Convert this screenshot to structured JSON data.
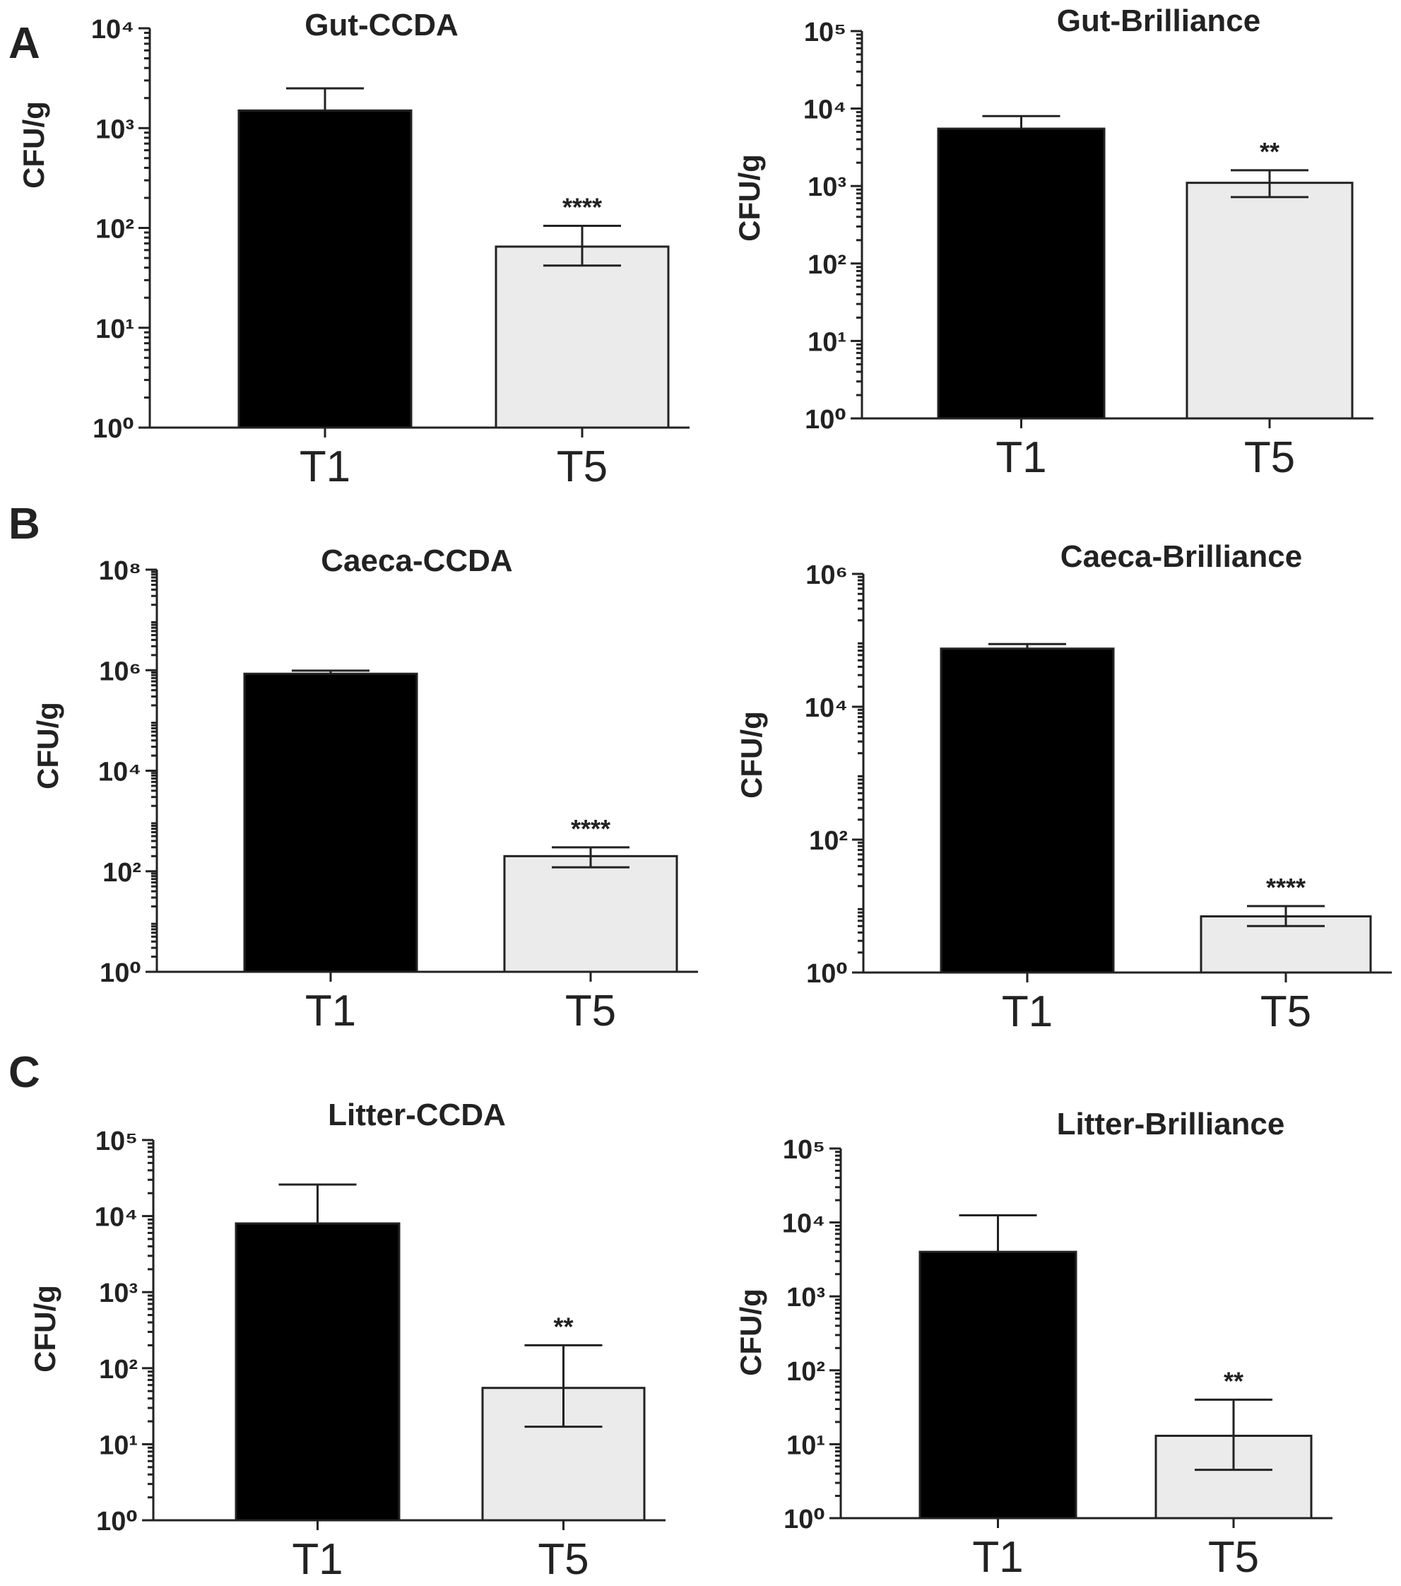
{
  "panel_labels": [
    "A",
    "B",
    "C"
  ],
  "colors": {
    "dark_bar": "#000000",
    "light_bar": "#ebebeb",
    "outline": "#222222",
    "background": "#ffffff"
  },
  "chart_data": [
    {
      "panel": "A",
      "type": "bar",
      "scale": "log10",
      "title": "Gut-CCDA",
      "ylabel": "CFU/g",
      "ylim": [
        1,
        10000
      ],
      "categories": [
        "T1",
        "T5"
      ],
      "values": [
        1500,
        65
      ],
      "error_upper": [
        2500,
        105
      ],
      "error_lower": [
        null,
        42
      ],
      "significance": [
        "",
        "****"
      ]
    },
    {
      "panel": "A",
      "type": "bar",
      "scale": "log10",
      "title": "Gut-Brilliance",
      "ylabel": "CFU/g",
      "ylim": [
        1,
        100000
      ],
      "categories": [
        "T1",
        "T5"
      ],
      "values": [
        5500,
        1100
      ],
      "error_upper": [
        8000,
        1600
      ],
      "error_lower": [
        null,
        720
      ],
      "significance": [
        "",
        "**"
      ]
    },
    {
      "panel": "B",
      "type": "bar",
      "scale": "log10",
      "title": "Caeca-CCDA",
      "ylabel": "CFU/g",
      "ylim": [
        1,
        100000000
      ],
      "categories": [
        "T1",
        "T5"
      ],
      "values": [
        850000,
        200
      ],
      "error_upper": [
        980000,
        300
      ],
      "error_lower": [
        null,
        120
      ],
      "significance": [
        "",
        "****"
      ]
    },
    {
      "panel": "B",
      "type": "bar",
      "scale": "log10",
      "title": "Caeca-Brilliance",
      "ylabel": "CFU/g",
      "ylim": [
        1,
        1000000
      ],
      "categories": [
        "T1",
        "T5"
      ],
      "values": [
        75000,
        7
      ],
      "error_upper": [
        88000,
        10
      ],
      "error_lower": [
        null,
        5
      ],
      "significance": [
        "",
        "****"
      ]
    },
    {
      "panel": "C",
      "type": "bar",
      "scale": "log10",
      "title": "Litter-CCDA",
      "ylabel": "CFU/g",
      "ylim": [
        1,
        100000
      ],
      "categories": [
        "T1",
        "T5"
      ],
      "values": [
        8000,
        55
      ],
      "error_upper": [
        26000,
        200
      ],
      "error_lower": [
        null,
        17
      ],
      "significance": [
        "",
        "**"
      ]
    },
    {
      "panel": "C",
      "type": "bar",
      "scale": "log10",
      "title": "Litter-Brilliance",
      "ylabel": "CFU/g",
      "ylim": [
        1,
        100000
      ],
      "categories": [
        "T1",
        "T5"
      ],
      "values": [
        4000,
        13
      ],
      "error_upper": [
        12500,
        40
      ],
      "error_lower": [
        null,
        4.5
      ],
      "significance": [
        "",
        "**"
      ]
    }
  ]
}
